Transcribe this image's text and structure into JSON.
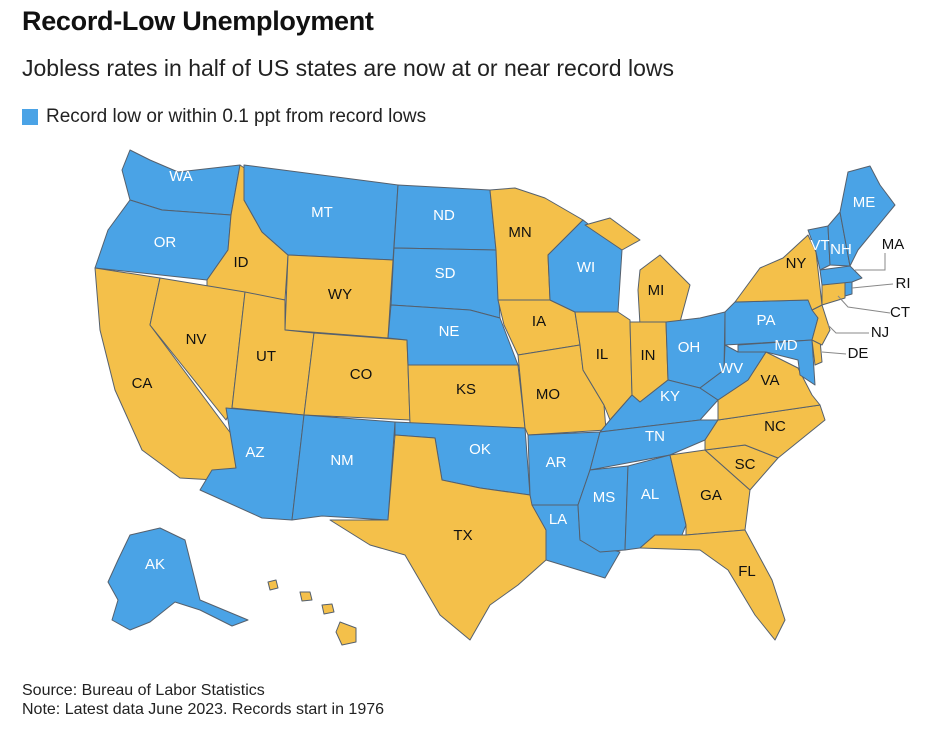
{
  "title": "Record-Low Unemployment",
  "subtitle": "Jobless rates in half of US states are now at or near record lows",
  "legend": {
    "label": "Record low or within 0.1 ppt from record lows",
    "color": "#4aa3e6"
  },
  "colors": {
    "record": "#4aa3e6",
    "other": "#f4c04a",
    "border": "#55606d"
  },
  "states": {
    "WA": {
      "label": "WA",
      "record": true
    },
    "OR": {
      "label": "OR",
      "record": true
    },
    "CA": {
      "label": "CA",
      "record": false
    },
    "ID": {
      "label": "ID",
      "record": false
    },
    "NV": {
      "label": "NV",
      "record": false
    },
    "MT": {
      "label": "MT",
      "record": true
    },
    "WY": {
      "label": "WY",
      "record": false
    },
    "UT": {
      "label": "UT",
      "record": false
    },
    "AZ": {
      "label": "AZ",
      "record": true
    },
    "CO": {
      "label": "CO",
      "record": false
    },
    "NM": {
      "label": "NM",
      "record": true
    },
    "ND": {
      "label": "ND",
      "record": true
    },
    "SD": {
      "label": "SD",
      "record": true
    },
    "NE": {
      "label": "NE",
      "record": true
    },
    "KS": {
      "label": "KS",
      "record": false
    },
    "OK": {
      "label": "OK",
      "record": true
    },
    "TX": {
      "label": "TX",
      "record": false
    },
    "MN": {
      "label": "MN",
      "record": false
    },
    "IA": {
      "label": "IA",
      "record": false
    },
    "MO": {
      "label": "MO",
      "record": false
    },
    "AR": {
      "label": "AR",
      "record": true
    },
    "LA": {
      "label": "LA",
      "record": true
    },
    "WI": {
      "label": "WI",
      "record": true
    },
    "IL": {
      "label": "IL",
      "record": false
    },
    "MI": {
      "label": "MI",
      "record": false
    },
    "IN": {
      "label": "IN",
      "record": false
    },
    "OH": {
      "label": "OH",
      "record": true
    },
    "KY": {
      "label": "KY",
      "record": true
    },
    "TN": {
      "label": "TN",
      "record": true
    },
    "MS": {
      "label": "MS",
      "record": true
    },
    "AL": {
      "label": "AL",
      "record": true
    },
    "GA": {
      "label": "GA",
      "record": false
    },
    "FL": {
      "label": "FL",
      "record": false
    },
    "SC": {
      "label": "SC",
      "record": false
    },
    "NC": {
      "label": "NC",
      "record": false
    },
    "VA": {
      "label": "VA",
      "record": false
    },
    "WV": {
      "label": "WV",
      "record": true
    },
    "MD": {
      "label": "MD",
      "record": true
    },
    "DE": {
      "label": "DE",
      "record": false
    },
    "NJ": {
      "label": "NJ",
      "record": false
    },
    "PA": {
      "label": "PA",
      "record": true
    },
    "NY": {
      "label": "NY",
      "record": false
    },
    "CT": {
      "label": "CT",
      "record": false
    },
    "RI": {
      "label": "RI",
      "record": true
    },
    "MA": {
      "label": "MA",
      "record": true
    },
    "VT": {
      "label": "VT",
      "record": true
    },
    "NH": {
      "label": "NH",
      "record": true
    },
    "ME": {
      "label": "ME",
      "record": true
    },
    "AK": {
      "label": "AK",
      "record": true
    },
    "HI": {
      "label": "",
      "record": false
    }
  },
  "footer": {
    "source": "Source: Bureau of Labor Statistics",
    "note": "Note: Latest data June 2023. Records start in 1976"
  }
}
